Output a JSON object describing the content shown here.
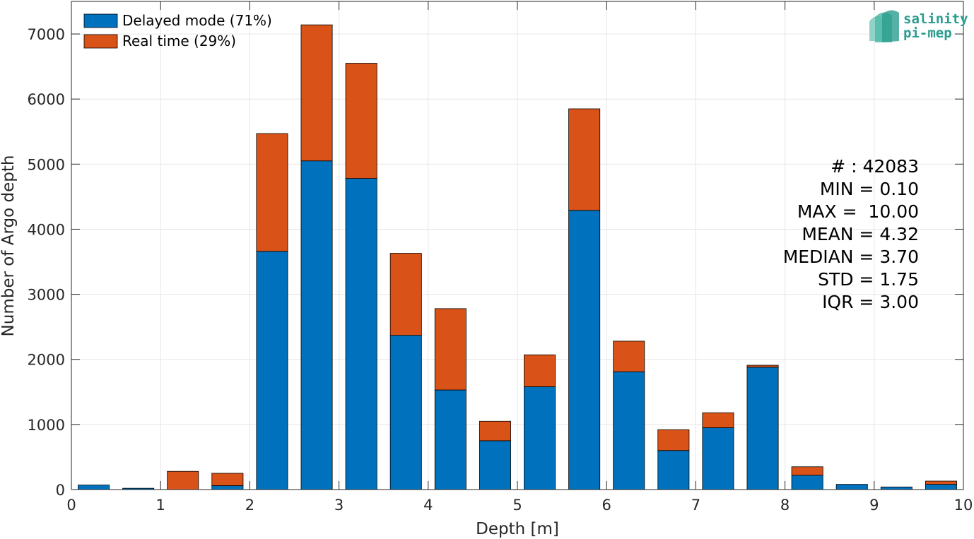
{
  "chart_data": {
    "type": "bar",
    "stacked": true,
    "title": "",
    "xlabel": "Depth [m]",
    "ylabel": "Number of Argo depth",
    "xlim": [
      0,
      10
    ],
    "ylim": [
      0,
      7500
    ],
    "grid": true,
    "legend_position": "top-left",
    "x_ticks": [
      "0",
      "1",
      "2",
      "3",
      "4",
      "5",
      "6",
      "7",
      "8",
      "9",
      "10"
    ],
    "y_ticks": [
      "0",
      "1000",
      "2000",
      "3000",
      "4000",
      "5000",
      "6000",
      "7000"
    ],
    "bin_width": 0.5,
    "bar_fraction": 0.7,
    "bin_centers": [
      0.25,
      0.75,
      1.25,
      1.75,
      2.25,
      2.75,
      3.25,
      3.75,
      4.25,
      4.75,
      5.25,
      5.75,
      6.25,
      6.75,
      7.25,
      7.75,
      8.25,
      8.75,
      9.25,
      9.75
    ],
    "series": [
      {
        "name": "Delayed mode (71%)",
        "color": "#0072BD",
        "values": [
          70,
          20,
          0,
          60,
          3660,
          5050,
          4780,
          2370,
          1530,
          750,
          1580,
          4290,
          1810,
          600,
          950,
          1880,
          220,
          80,
          40,
          80
        ]
      },
      {
        "name": "Real time (29%)",
        "color": "#D95319",
        "values": [
          0,
          0,
          280,
          190,
          1810,
          2090,
          1770,
          1260,
          1250,
          300,
          490,
          1560,
          470,
          320,
          230,
          30,
          130,
          0,
          0,
          50
        ]
      }
    ],
    "stats": [
      "# : 42083",
      "MIN = 0.10",
      "MAX =  10.00",
      "MEAN = 4.32",
      "MEDIAN = 3.70",
      "STD = 1.75",
      "IQR = 3.00"
    ]
  },
  "logo": {
    "line1": "salinity",
    "line2": "pi-mep",
    "color": "#2a9d8f"
  }
}
